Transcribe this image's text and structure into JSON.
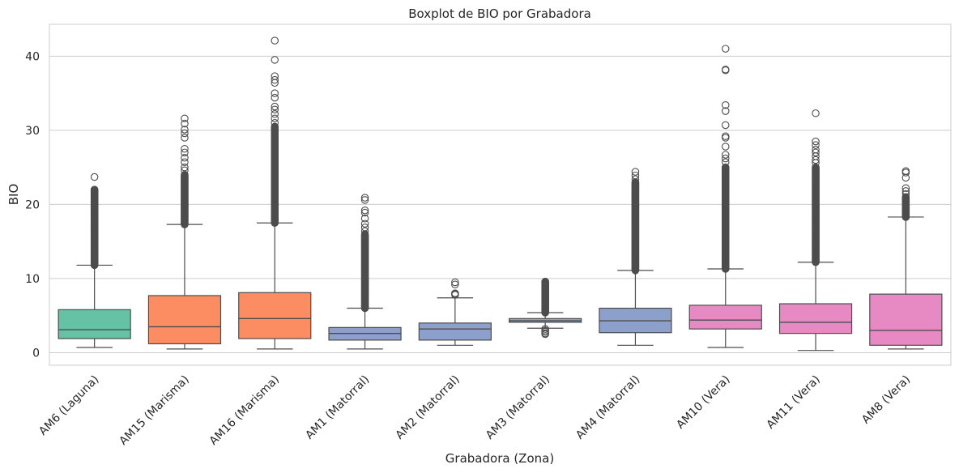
{
  "chart_data": {
    "type": "boxplot",
    "title": "Boxplot de BIO por Grabadora",
    "xlabel": "Grabadora (Zona)",
    "ylabel": "BIO",
    "ylim": [
      -1.7,
      44.3
    ],
    "yticks": [
      0,
      10,
      20,
      30,
      40
    ],
    "grid": true,
    "categories": [
      "AM6 (Laguna)",
      "AM15 (Marisma)",
      "AM16 (Marisma)",
      "AM1 (Matorral)",
      "AM2 (Matorral)",
      "AM3 (Matorral)",
      "AM4 (Matorral)",
      "AM10 (Vera)",
      "AM11 (Vera)",
      "AM8 (Vera)"
    ],
    "colors": [
      "#66c2a5",
      "#fc8d62",
      "#fc8d62",
      "#8da0cb",
      "#8da0cb",
      "#8da0cb",
      "#8da0cb",
      "#e78ac3",
      "#e78ac3",
      "#e78ac3"
    ],
    "boxes": [
      {
        "whisker_low": 0.7,
        "q1": 1.9,
        "median": 3.1,
        "q3": 5.8,
        "whisker_high": 11.8,
        "outlier_range": [
          11.8,
          22.0
        ],
        "outliers": [
          23.7,
          21.8,
          21.3,
          20.8,
          20.3,
          19.8,
          19.2,
          18.8,
          18.4
        ]
      },
      {
        "whisker_low": 0.5,
        "q1": 1.2,
        "median": 3.5,
        "q3": 7.7,
        "whisker_high": 17.3,
        "outlier_range": [
          17.3,
          24.0
        ],
        "outliers": [
          31.6,
          30.9,
          30.1,
          29.6,
          29.0,
          27.5,
          27.0,
          26.3,
          25.7,
          25.0,
          24.6
        ]
      },
      {
        "whisker_low": 0.5,
        "q1": 1.9,
        "median": 4.6,
        "q3": 8.1,
        "whisker_high": 17.5,
        "outlier_range": [
          17.5,
          30.5
        ],
        "outliers": [
          42.1,
          39.5,
          37.3,
          36.8,
          36.4,
          35.0,
          34.4,
          33.2,
          32.8,
          32.2,
          31.6,
          31.0
        ]
      },
      {
        "whisker_low": 0.5,
        "q1": 1.7,
        "median": 2.6,
        "q3": 3.4,
        "whisker_high": 6.0,
        "outlier_range": [
          6.0,
          16.0
        ],
        "outliers": [
          20.9,
          20.6,
          19.2,
          18.9,
          18.1,
          17.4,
          16.9,
          16.4
        ]
      },
      {
        "whisker_low": 1.0,
        "q1": 1.7,
        "median": 3.2,
        "q3": 4.0,
        "whisker_high": 7.4,
        "outlier_range": [
          7.9,
          8.0
        ],
        "outliers": [
          9.5,
          9.2,
          8.0,
          7.8
        ]
      },
      {
        "whisker_low": 3.3,
        "q1": 4.1,
        "median": 4.3,
        "q3": 4.6,
        "whisker_high": 5.4,
        "outlier_range": [
          5.4,
          9.6
        ],
        "outliers": [
          3.2,
          3.0,
          2.8,
          2.6,
          2.5
        ]
      },
      {
        "whisker_low": 1.0,
        "q1": 2.7,
        "median": 4.3,
        "q3": 6.0,
        "whisker_high": 11.1,
        "outlier_range": [
          11.1,
          23.0
        ],
        "outliers": [
          24.4,
          23.9,
          23.4
        ]
      },
      {
        "whisker_low": 0.7,
        "q1": 3.2,
        "median": 4.4,
        "q3": 6.4,
        "whisker_high": 11.3,
        "outlier_range": [
          11.3,
          25.0
        ],
        "outliers": [
          41.0,
          38.2,
          38.1,
          33.4,
          32.6,
          30.7,
          29.2,
          29.0,
          27.8,
          26.7,
          26.2,
          25.7
        ]
      },
      {
        "whisker_low": 0.3,
        "q1": 2.6,
        "median": 4.1,
        "q3": 6.6,
        "whisker_high": 12.2,
        "outlier_range": [
          12.2,
          25.0
        ],
        "outliers": [
          32.3,
          28.5,
          28.0,
          27.4,
          27.0,
          26.5,
          26.0,
          25.6
        ]
      },
      {
        "whisker_low": 0.5,
        "q1": 1.0,
        "median": 3.0,
        "q3": 7.9,
        "whisker_high": 18.3,
        "outlier_range": [
          18.3,
          21.0
        ],
        "outliers": [
          24.5,
          24.3,
          23.6,
          22.2,
          21.8,
          21.4,
          20.9,
          20.4,
          19.9,
          19.4,
          19.0,
          18.6
        ]
      }
    ]
  }
}
